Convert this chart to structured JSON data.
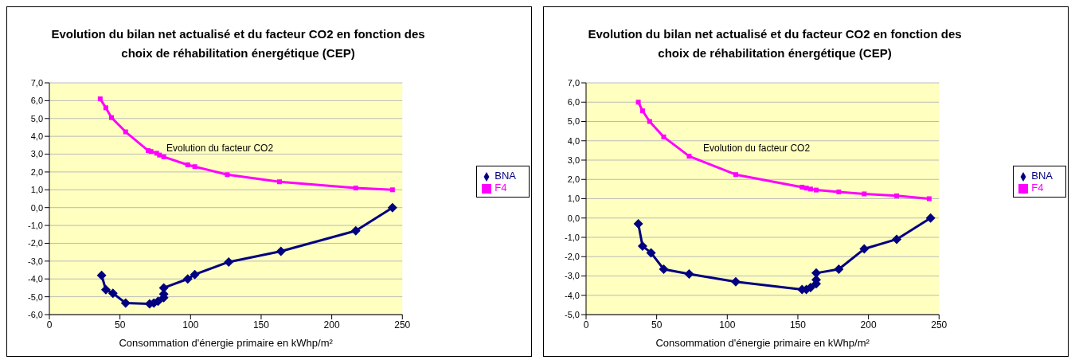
{
  "chart_data": [
    {
      "type": "line",
      "title": "Evolution du bilan net actualisé et du facteur CO2 en fonction des choix de réhabilitation énergétique (CEP)",
      "xlabel": "Consommation d'énergie primaire en kWhp/m²",
      "annotations": [
        "Evolution du facteur CO2"
      ],
      "xlim": [
        0,
        250
      ],
      "xticks": [
        0,
        50,
        100,
        150,
        200,
        250
      ],
      "ylim": [
        -6,
        7
      ],
      "yticks": [
        {
          "value": -6,
          "label": "-6,0"
        },
        {
          "value": -5,
          "label": "-5,0"
        },
        {
          "value": -4,
          "label": "-4,0"
        },
        {
          "value": -3,
          "label": "-3,0"
        },
        {
          "value": -2,
          "label": "-2,0"
        },
        {
          "value": -1,
          "label": "-1,0"
        },
        {
          "value": 0,
          "label": "0,0"
        },
        {
          "value": 1,
          "label": "1,0"
        },
        {
          "value": 2,
          "label": "2,0"
        },
        {
          "value": 3,
          "label": "3,0"
        },
        {
          "value": 4,
          "label": "4,0"
        },
        {
          "value": 5,
          "label": "5,0"
        },
        {
          "value": 6,
          "label": "6,0"
        },
        {
          "value": 7,
          "label": "7,0"
        }
      ],
      "grid": "y",
      "legend": "right",
      "series": [
        {
          "name": "BNA",
          "color": "#000080",
          "marker": "diamond",
          "x": [
            37,
            40,
            45,
            54,
            71,
            74,
            77,
            81,
            81,
            81,
            98,
            103,
            127,
            164,
            217,
            243
          ],
          "values": [
            -3.8,
            -4.6,
            -4.8,
            -5.35,
            -5.4,
            -5.35,
            -5.25,
            -5.05,
            -4.85,
            -4.5,
            -4.0,
            -3.75,
            -3.05,
            -2.45,
            -1.3,
            0
          ]
        },
        {
          "name": "F4",
          "color": "#ff00ff",
          "marker": "square",
          "x": [
            36,
            40,
            44,
            54,
            70,
            72,
            76,
            78,
            81,
            98,
            103,
            126,
            163,
            217,
            243
          ],
          "values": [
            6.1,
            5.6,
            5.05,
            4.25,
            3.2,
            3.15,
            3.05,
            2.95,
            2.85,
            2.4,
            2.3,
            1.85,
            1.45,
            1.1,
            1.0
          ]
        }
      ]
    },
    {
      "type": "line",
      "title": "Evolution du bilan net actualisé et du facteur CO2 en fonction des choix de réhabilitation énergétique (CEP)",
      "xlabel": "Consommation d'énergie primaire en kWhp/m²",
      "annotations": [
        "Evolution du facteur CO2"
      ],
      "xlim": [
        0,
        250
      ],
      "xticks": [
        0,
        50,
        100,
        150,
        200,
        250
      ],
      "ylim": [
        -5,
        7
      ],
      "yticks": [
        {
          "value": -5,
          "label": "-5,0"
        },
        {
          "value": -4,
          "label": "-4,0"
        },
        {
          "value": -3,
          "label": "-3,0"
        },
        {
          "value": -2,
          "label": "-2,0"
        },
        {
          "value": -1,
          "label": "-1,0"
        },
        {
          "value": 0,
          "label": "0,0"
        },
        {
          "value": 1,
          "label": "1,0"
        },
        {
          "value": 2,
          "label": "2,0"
        },
        {
          "value": 3,
          "label": "3,0"
        },
        {
          "value": 4,
          "label": "4,0"
        },
        {
          "value": 5,
          "label": "5,0"
        },
        {
          "value": 6,
          "label": "6,0"
        },
        {
          "value": 7,
          "label": "7,0"
        }
      ],
      "grid": "y",
      "legend": "right",
      "series": [
        {
          "name": "BNA",
          "color": "#000080",
          "marker": "diamond",
          "x": [
            37,
            40,
            46,
            55,
            73,
            106,
            153,
            156,
            159,
            163,
            163,
            163,
            179,
            197,
            220,
            244
          ],
          "values": [
            -0.3,
            -1.45,
            -1.8,
            -2.65,
            -2.9,
            -3.3,
            -3.7,
            -3.7,
            -3.6,
            -3.4,
            -3.2,
            -2.85,
            -2.65,
            -1.6,
            -1.1,
            0
          ]
        },
        {
          "name": "F4",
          "color": "#ff00ff",
          "marker": "square",
          "x": [
            37,
            40,
            45,
            55,
            73,
            106,
            153,
            156,
            159,
            163,
            179,
            197,
            220,
            243
          ],
          "values": [
            6.0,
            5.55,
            5.0,
            4.2,
            3.2,
            2.25,
            1.6,
            1.55,
            1.5,
            1.45,
            1.35,
            1.25,
            1.15,
            1.0
          ]
        }
      ]
    }
  ]
}
